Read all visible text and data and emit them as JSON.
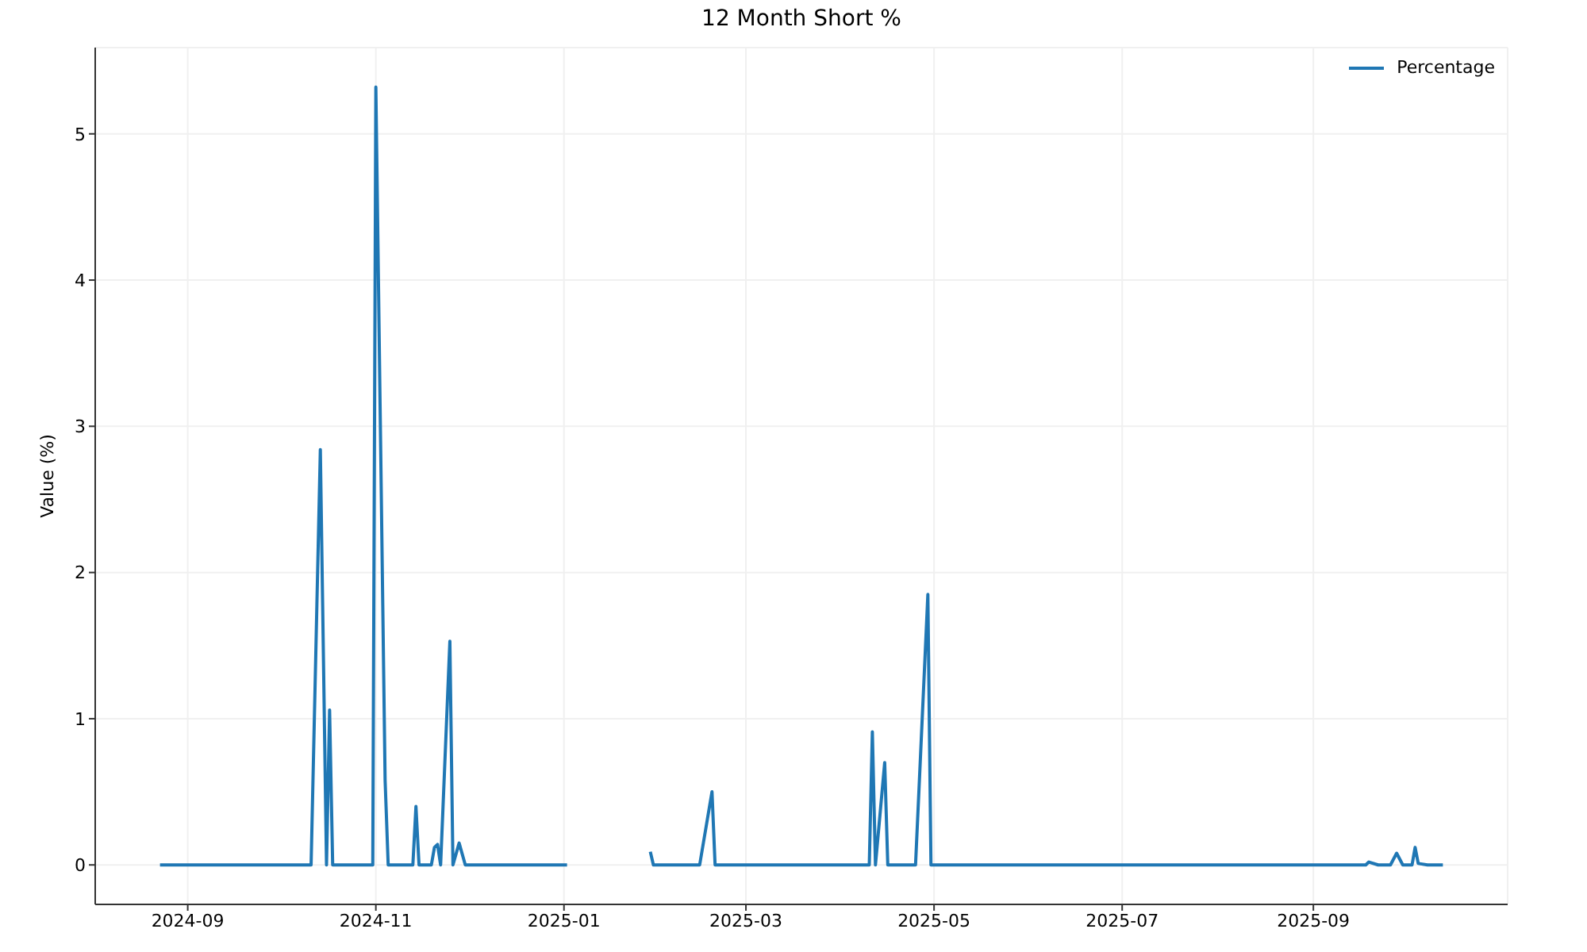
{
  "chart_data": {
    "type": "line",
    "title": "12 Month Short %",
    "ylabel": "Value (%)",
    "x": [
      "2024-08-23",
      "2024-10-11",
      "2024-10-14",
      "2024-10-16",
      "2024-10-17",
      "2024-10-18",
      "2024-10-31",
      "2024-11-01",
      "2024-11-04",
      "2024-11-05",
      "2024-11-13",
      "2024-11-14",
      "2024-11-15",
      "2024-11-19",
      "2024-11-20",
      "2024-11-21",
      "2024-11-22",
      "2024-11-25",
      "2024-11-26",
      "2024-11-28",
      "2024-11-30",
      "2025-01-02",
      "2025-01-15",
      "2025-01-29",
      "2025-01-30",
      "2025-02-14",
      "2025-02-18",
      "2025-02-19",
      "2025-04-10",
      "2025-04-11",
      "2025-04-12",
      "2025-04-15",
      "2025-04-16",
      "2025-04-25",
      "2025-04-29",
      "2025-04-30",
      "2025-09-18",
      "2025-09-19",
      "2025-09-22",
      "2025-09-26",
      "2025-09-28",
      "2025-09-30",
      "2025-10-03",
      "2025-10-04",
      "2025-10-05",
      "2025-10-08",
      "2025-10-13"
    ],
    "series": [
      {
        "name": "Percentage",
        "color": "#1f77b4",
        "values": [
          0,
          0,
          2.84,
          0,
          1.06,
          0,
          0,
          5.32,
          0.58,
          0,
          0,
          0.4,
          0,
          0,
          0.12,
          0.14,
          0,
          1.53,
          0,
          0.15,
          0,
          0,
          null,
          0.09,
          0,
          0,
          0.5,
          0,
          0,
          0.91,
          0,
          0.7,
          0,
          0,
          1.85,
          0,
          0,
          0.02,
          0,
          0,
          0.08,
          0,
          0,
          0.12,
          0.01,
          0,
          0
        ]
      }
    ],
    "xlim": [
      "2024-08-02",
      "2025-11-03"
    ],
    "xticks": [
      "2024-09",
      "2024-11",
      "2025-01",
      "2025-03",
      "2025-05",
      "2025-07",
      "2025-09"
    ],
    "ylim": [
      -0.27,
      5.59
    ],
    "yticks": [
      0,
      1,
      2,
      3,
      4,
      5
    ],
    "grid": true,
    "legend": "top right",
    "marker": "none"
  }
}
